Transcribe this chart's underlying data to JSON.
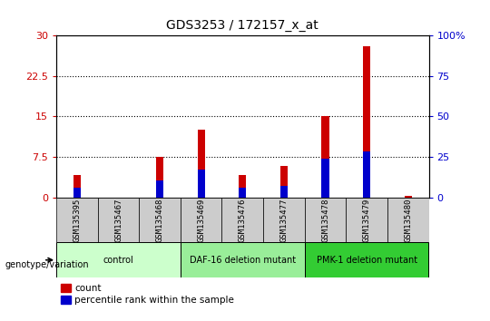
{
  "title": "GDS3253 / 172157_x_at",
  "samples": [
    "GSM135395",
    "GSM135467",
    "GSM135468",
    "GSM135469",
    "GSM135476",
    "GSM135477",
    "GSM135478",
    "GSM135479",
    "GSM135480"
  ],
  "count_values": [
    4.2,
    0.0,
    7.5,
    12.5,
    4.2,
    5.8,
    15.0,
    28.0,
    0.3
  ],
  "percentile_values": [
    1.8,
    0.0,
    3.2,
    5.2,
    1.8,
    2.2,
    7.2,
    8.5,
    0.0
  ],
  "count_color": "#cc0000",
  "percentile_color": "#0000cc",
  "left_yticks": [
    0,
    7.5,
    15,
    22.5,
    30
  ],
  "left_ylabels": [
    "0",
    "7.5",
    "15",
    "22.5",
    "30"
  ],
  "right_yticks": [
    0,
    25,
    50,
    75,
    100
  ],
  "right_ylabels": [
    "0",
    "25",
    "50",
    "75",
    "100%"
  ],
  "ymax": 30,
  "ymin": 0,
  "grid_values": [
    7.5,
    15,
    22.5
  ],
  "groups": [
    {
      "label": "control",
      "start": 0,
      "end": 3,
      "color": "#ccffcc"
    },
    {
      "label": "DAF-16 deletion mutant",
      "start": 3,
      "end": 6,
      "color": "#99ee99"
    },
    {
      "label": "PMK-1 deletion mutant",
      "start": 6,
      "end": 9,
      "color": "#33cc33"
    }
  ],
  "group_label": "genotype/variation",
  "legend_count": "count",
  "legend_percentile": "percentile rank within the sample",
  "bar_width": 0.18,
  "bg_color": "#ffffff",
  "tick_label_area_color": "#cccccc"
}
